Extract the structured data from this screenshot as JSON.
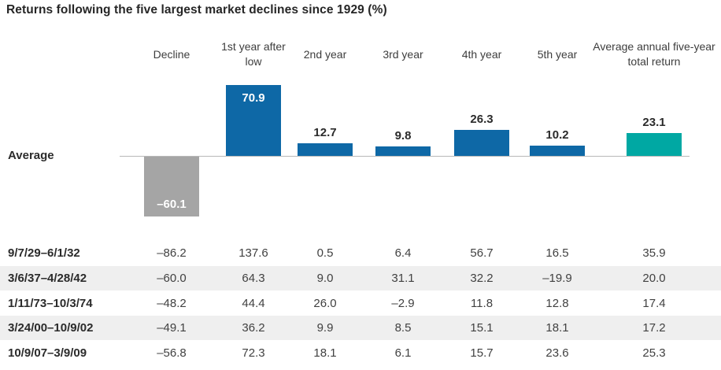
{
  "title": "Returns following the five largest market declines since 1929 (%)",
  "average_label": "Average",
  "colors": {
    "blue": "#0e68a6",
    "teal": "#00a8a3",
    "gray": "#a5a5a5",
    "stripe": "#efefef",
    "axis": "#b8b8b8",
    "title_text": "#262626",
    "header_text": "#3d3d3d",
    "number_text": "#414141",
    "white_label": "#ffffff"
  },
  "chart_data": {
    "type": "bar",
    "title": "Returns following the five largest market declines since 1929 (%)",
    "categories": [
      "Decline",
      "1st year after low",
      "2nd year",
      "3rd year",
      "4th year",
      "5th year",
      "Average annual five-year total return"
    ],
    "bar_row_label": "Average",
    "values": [
      -60.1,
      70.9,
      12.7,
      9.8,
      26.3,
      10.2,
      23.1
    ],
    "bar_colors": [
      "gray",
      "blue",
      "blue",
      "blue",
      "blue",
      "blue",
      "teal"
    ],
    "ylim": [
      -90,
      140
    ],
    "grid": false,
    "legend": false,
    "table_rows": [
      {
        "label": "9/7/29–6/1/32",
        "values": [
          -86.2,
          137.6,
          0.5,
          6.4,
          56.7,
          16.5,
          35.9
        ]
      },
      {
        "label": "3/6/37–4/28/42",
        "values": [
          -60.0,
          64.3,
          9.0,
          31.1,
          32.2,
          -19.9,
          20.0
        ]
      },
      {
        "label": "1/11/73–10/3/74",
        "values": [
          -48.2,
          44.4,
          26.0,
          -2.9,
          11.8,
          12.8,
          17.4
        ]
      },
      {
        "label": "3/24/00–10/9/02",
        "values": [
          -49.1,
          36.2,
          9.9,
          8.5,
          15.1,
          18.1,
          17.2
        ]
      },
      {
        "label": "10/9/07–3/9/09",
        "values": [
          -56.8,
          72.3,
          18.1,
          6.1,
          15.7,
          23.6,
          25.3
        ]
      }
    ]
  }
}
